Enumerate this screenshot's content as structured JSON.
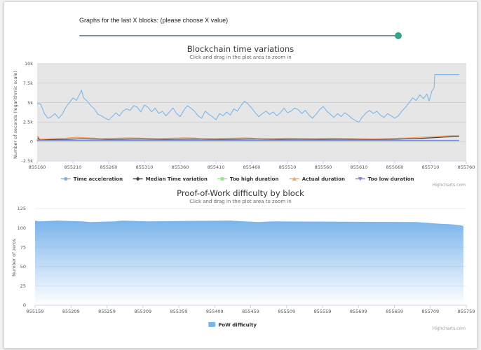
{
  "slider": {
    "label": "Graphs for the last X blocks: (please choose X value)",
    "value_fraction": 1.0
  },
  "chart_data": [
    {
      "type": "line",
      "title": "Blockchain time variations",
      "subtitle": "Click and drag in the plot area to zoom in",
      "ylabel": "Number of seconds (logarithmic scale)",
      "ylim": [
        -2500,
        10000
      ],
      "yticks": [
        -2500,
        0,
        2500,
        5000,
        7500,
        10000
      ],
      "ytick_labels": [
        "-2.5k",
        "0",
        "2.5k",
        "5k",
        "7.5k",
        "10k"
      ],
      "xlim": [
        855160,
        855760
      ],
      "xticks": [
        855160,
        855210,
        855260,
        855310,
        855360,
        855410,
        855460,
        855510,
        855560,
        855610,
        855660,
        855710,
        855760
      ],
      "plot_background": "#e6e6e6",
      "grid": true,
      "legend_position": "bottom-center",
      "credit": "Highcharts.com",
      "series": [
        {
          "name": "Time acceleration",
          "color": "#7cb5ec",
          "marker": "circle",
          "points": [
            [
              855160,
              4900
            ],
            [
              855165,
              4800
            ],
            [
              855170,
              3600
            ],
            [
              855175,
              3000
            ],
            [
              855180,
              3200
            ],
            [
              855185,
              3600
            ],
            [
              855190,
              3000
            ],
            [
              855195,
              3500
            ],
            [
              855200,
              4400
            ],
            [
              855205,
              5000
            ],
            [
              855210,
              5600
            ],
            [
              855215,
              5300
            ],
            [
              855220,
              6200
            ],
            [
              855222,
              6600
            ],
            [
              855225,
              5600
            ],
            [
              855230,
              5200
            ],
            [
              855235,
              4600
            ],
            [
              855240,
              4200
            ],
            [
              855245,
              3500
            ],
            [
              855250,
              3300
            ],
            [
              855255,
              3000
            ],
            [
              855260,
              2800
            ],
            [
              855265,
              3200
            ],
            [
              855270,
              3700
            ],
            [
              855275,
              3300
            ],
            [
              855280,
              3900
            ],
            [
              855285,
              4200
            ],
            [
              855290,
              4000
            ],
            [
              855295,
              4600
            ],
            [
              855300,
              4400
            ],
            [
              855305,
              3800
            ],
            [
              855310,
              4700
            ],
            [
              855315,
              4400
            ],
            [
              855320,
              3800
            ],
            [
              855325,
              4300
            ],
            [
              855330,
              3600
            ],
            [
              855335,
              3900
            ],
            [
              855340,
              3300
            ],
            [
              855345,
              3800
            ],
            [
              855350,
              4300
            ],
            [
              855355,
              3600
            ],
            [
              855360,
              3200
            ],
            [
              855365,
              4000
            ],
            [
              855370,
              4600
            ],
            [
              855375,
              4300
            ],
            [
              855380,
              3900
            ],
            [
              855385,
              3300
            ],
            [
              855390,
              3000
            ],
            [
              855395,
              3900
            ],
            [
              855400,
              3500
            ],
            [
              855405,
              3200
            ],
            [
              855410,
              2800
            ],
            [
              855415,
              3600
            ],
            [
              855420,
              3300
            ],
            [
              855425,
              3800
            ],
            [
              855430,
              3400
            ],
            [
              855435,
              4200
            ],
            [
              855440,
              3900
            ],
            [
              855445,
              4600
            ],
            [
              855450,
              5200
            ],
            [
              855455,
              4800
            ],
            [
              855460,
              4300
            ],
            [
              855465,
              3700
            ],
            [
              855470,
              3200
            ],
            [
              855475,
              3600
            ],
            [
              855480,
              3900
            ],
            [
              855485,
              3500
            ],
            [
              855490,
              3800
            ],
            [
              855495,
              3300
            ],
            [
              855500,
              3700
            ],
            [
              855505,
              4300
            ],
            [
              855510,
              3700
            ],
            [
              855515,
              3900
            ],
            [
              855520,
              4300
            ],
            [
              855525,
              4100
            ],
            [
              855530,
              3600
            ],
            [
              855535,
              4000
            ],
            [
              855540,
              3400
            ],
            [
              855545,
              3000
            ],
            [
              855550,
              3500
            ],
            [
              855555,
              4100
            ],
            [
              855560,
              4500
            ],
            [
              855565,
              3900
            ],
            [
              855570,
              3500
            ],
            [
              855575,
              3100
            ],
            [
              855580,
              3600
            ],
            [
              855585,
              3200
            ],
            [
              855590,
              3700
            ],
            [
              855595,
              3400
            ],
            [
              855600,
              3000
            ],
            [
              855605,
              2700
            ],
            [
              855610,
              2500
            ],
            [
              855615,
              3200
            ],
            [
              855620,
              3700
            ],
            [
              855625,
              4000
            ],
            [
              855630,
              3600
            ],
            [
              855635,
              3900
            ],
            [
              855640,
              3400
            ],
            [
              855645,
              3100
            ],
            [
              855650,
              3600
            ],
            [
              855655,
              3300
            ],
            [
              855660,
              3000
            ],
            [
              855665,
              3300
            ],
            [
              855670,
              3900
            ],
            [
              855675,
              4400
            ],
            [
              855680,
              5000
            ],
            [
              855685,
              5600
            ],
            [
              855690,
              5300
            ],
            [
              855695,
              6000
            ],
            [
              855700,
              5500
            ],
            [
              855705,
              6100
            ],
            [
              855708,
              5200
            ],
            [
              855712,
              6500
            ],
            [
              855715,
              6900
            ],
            [
              855716,
              8600
            ],
            [
              855720,
              8600
            ],
            [
              855740,
              8600
            ],
            [
              855750,
              8600
            ]
          ]
        },
        {
          "name": "Median Time variation",
          "color": "#434348",
          "marker": "diamond",
          "points": [
            [
              855160,
              100
            ],
            [
              855161,
              500
            ],
            [
              855163,
              200
            ],
            [
              855180,
              250
            ],
            [
              855200,
              280
            ],
            [
              855220,
              350
            ],
            [
              855240,
              320
            ],
            [
              855260,
              270
            ],
            [
              855280,
              300
            ],
            [
              855300,
              330
            ],
            [
              855320,
              300
            ],
            [
              855340,
              280
            ],
            [
              855360,
              300
            ],
            [
              855380,
              320
            ],
            [
              855400,
              290
            ],
            [
              855420,
              280
            ],
            [
              855440,
              300
            ],
            [
              855460,
              330
            ],
            [
              855480,
              300
            ],
            [
              855500,
              280
            ],
            [
              855520,
              300
            ],
            [
              855540,
              290
            ],
            [
              855560,
              280
            ],
            [
              855580,
              300
            ],
            [
              855600,
              290
            ],
            [
              855620,
              280
            ],
            [
              855640,
              270
            ],
            [
              855660,
              300
            ],
            [
              855680,
              360
            ],
            [
              855700,
              420
            ],
            [
              855720,
              520
            ],
            [
              855735,
              600
            ],
            [
              855750,
              650
            ]
          ]
        },
        {
          "name": "Too high duration",
          "color": "#90ed7d",
          "marker": "square",
          "points": [
            [
              855160,
              50
            ],
            [
              855750,
              50
            ]
          ]
        },
        {
          "name": "Actual duration",
          "color": "#f7a35c",
          "marker": "triangle",
          "points": [
            [
              855160,
              0
            ],
            [
              855161,
              700
            ],
            [
              855164,
              300
            ],
            [
              855185,
              380
            ],
            [
              855200,
              420
            ],
            [
              855215,
              550
            ],
            [
              855230,
              480
            ],
            [
              855250,
              380
            ],
            [
              855270,
              420
            ],
            [
              855290,
              470
            ],
            [
              855310,
              420
            ],
            [
              855330,
              380
            ],
            [
              855350,
              430
            ],
            [
              855370,
              480
            ],
            [
              855390,
              400
            ],
            [
              855410,
              380
            ],
            [
              855430,
              420
            ],
            [
              855450,
              470
            ],
            [
              855470,
              400
            ],
            [
              855490,
              380
            ],
            [
              855510,
              420
            ],
            [
              855530,
              400
            ],
            [
              855550,
              380
            ],
            [
              855570,
              420
            ],
            [
              855590,
              400
            ],
            [
              855610,
              370
            ],
            [
              855630,
              350
            ],
            [
              855650,
              380
            ],
            [
              855670,
              440
            ],
            [
              855690,
              520
            ],
            [
              855710,
              600
            ],
            [
              855725,
              680
            ],
            [
              855740,
              760
            ],
            [
              855750,
              780
            ]
          ]
        },
        {
          "name": "Too low duration",
          "color": "#8085e9",
          "marker": "triangle-down",
          "points": [
            [
              855160,
              150
            ],
            [
              855750,
              150
            ]
          ]
        }
      ]
    },
    {
      "type": "area",
      "title": "Proof-of-Work difficulty by block",
      "subtitle": "Click and drag in the plot area to zoom in",
      "ylabel": "Number of zeros",
      "ylim": [
        0,
        125
      ],
      "yticks": [
        0,
        25,
        50,
        75,
        100,
        125
      ],
      "xlim": [
        855159,
        855759
      ],
      "xticks": [
        855159,
        855209,
        855259,
        855309,
        855359,
        855409,
        855459,
        855509,
        855559,
        855609,
        855659,
        855709,
        855759
      ],
      "grid": true,
      "legend_position": "bottom-center",
      "credit": "Highcharts.com",
      "series": [
        {
          "name": "PoW difficulty",
          "color": "#7cb5ec",
          "points": [
            [
              855159,
              109
            ],
            [
              855165,
              108
            ],
            [
              855190,
              109
            ],
            [
              855225,
              108
            ],
            [
              855235,
              107
            ],
            [
              855270,
              108
            ],
            [
              855280,
              109
            ],
            [
              855315,
              108
            ],
            [
              855430,
              109
            ],
            [
              855450,
              108
            ],
            [
              855470,
              107
            ],
            [
              855490,
              108
            ],
            [
              855690,
              107
            ],
            [
              855705,
              106
            ],
            [
              855720,
              105
            ],
            [
              855740,
              104
            ],
            [
              855750,
              103
            ],
            [
              855755,
              102
            ]
          ]
        }
      ]
    }
  ]
}
